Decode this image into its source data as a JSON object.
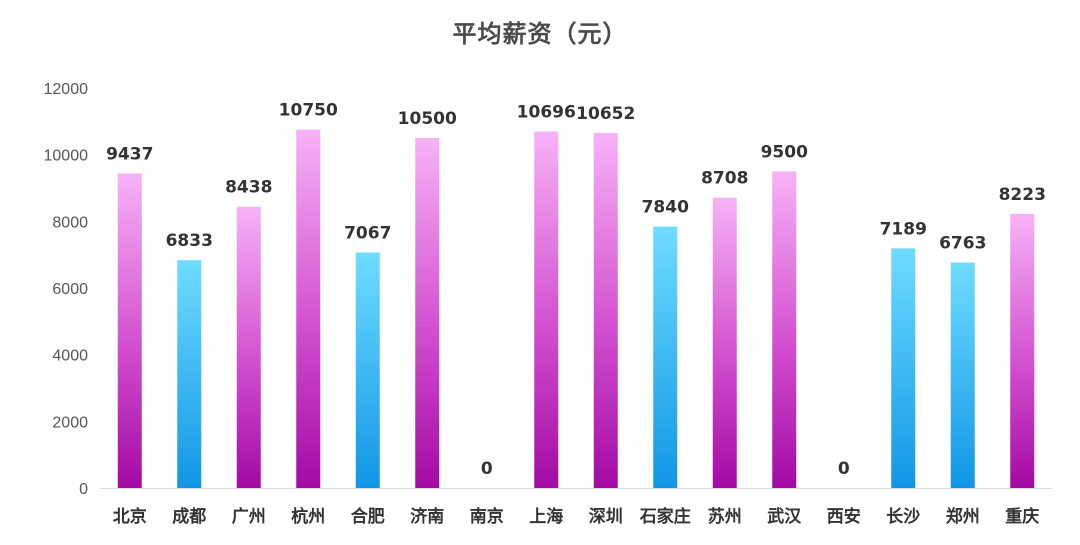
{
  "chart_data": {
    "type": "bar",
    "title": "平均薪资（元）",
    "categories": [
      "北京",
      "成都",
      "广州",
      "杭州",
      "合肥",
      "济南",
      "南京",
      "上海",
      "深圳",
      "石家庄",
      "苏州",
      "武汉",
      "西安",
      "长沙",
      "郑州",
      "重庆"
    ],
    "values": [
      9437,
      6833,
      8438,
      10750,
      7067,
      10500,
      0,
      10696,
      10652,
      7840,
      8708,
      9500,
      0,
      7189,
      6763,
      8223
    ],
    "bar_styles": [
      "pink",
      "blue",
      "pink",
      "pink",
      "blue",
      "pink",
      "pink",
      "pink",
      "pink",
      "blue",
      "pink",
      "pink",
      "pink",
      "blue",
      "blue",
      "pink"
    ],
    "ylim": [
      0,
      12000
    ],
    "yticks": [
      0,
      2000,
      4000,
      6000,
      8000,
      10000,
      12000
    ],
    "grid": false,
    "legend": "none",
    "xlabel": "",
    "ylabel": ""
  },
  "colors": {
    "pink_top": "#f7b2f7",
    "pink_mid": "#d24fcf",
    "pink_bottom": "#a30aa3",
    "blue_top": "#6fdcff",
    "blue_bottom": "#1096e6",
    "axis": "#d9d9d9"
  }
}
